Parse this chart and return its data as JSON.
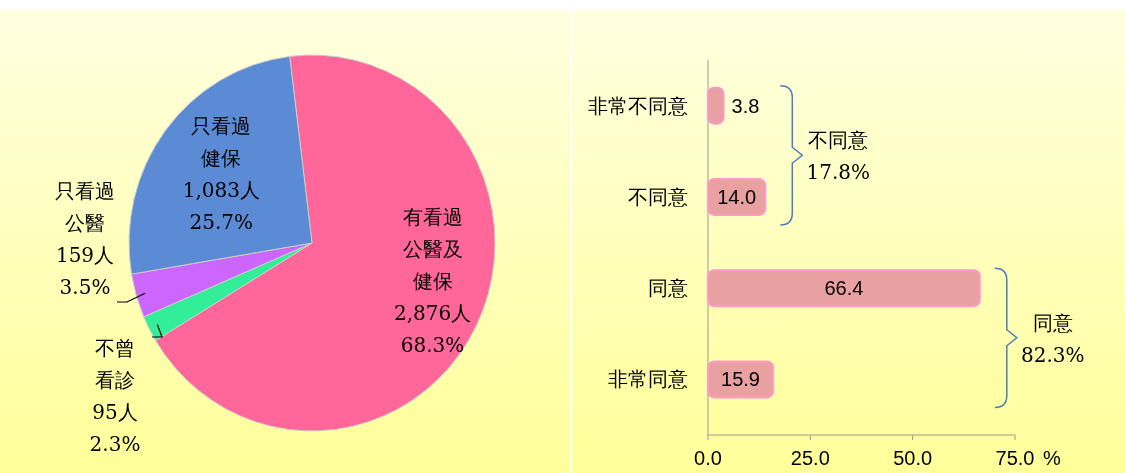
{
  "chart_data": [
    {
      "type": "pie",
      "categories": [
        "有看過公醫及健保",
        "不曾看診",
        "只看過公醫",
        "只看過健保"
      ],
      "values": [
        2876,
        95,
        159,
        1083
      ],
      "value_labels": [
        "2,876人\n68.3%",
        "95人\n2.3%",
        "159人\n3.5%",
        "1,083人\n25.7%"
      ],
      "colors": [
        "#ff6699",
        "#33ee99",
        "#cc66ff",
        "#5b8bd4"
      ]
    },
    {
      "type": "bar",
      "orientation": "horizontal",
      "categories": [
        "非常不同意",
        "不同意",
        "同意",
        "非常同意"
      ],
      "values": [
        3.8,
        14.0,
        66.4,
        15.9
      ],
      "value_labels": [
        "3.8",
        "14.0",
        "66.4",
        "15.9"
      ],
      "color": "#e8a0a0",
      "xlim": [
        0,
        75
      ],
      "xticks": [
        {
          "value": 0,
          "label": "0.0"
        },
        {
          "value": 25,
          "label": "25.0"
        },
        {
          "value": 50,
          "label": "50.0"
        },
        {
          "value": 75,
          "label": "75.0"
        }
      ],
      "xlabel": "%",
      "grid": false,
      "annotations": [
        "不同意\n17.8%",
        "同意\n82.3%"
      ]
    }
  ]
}
